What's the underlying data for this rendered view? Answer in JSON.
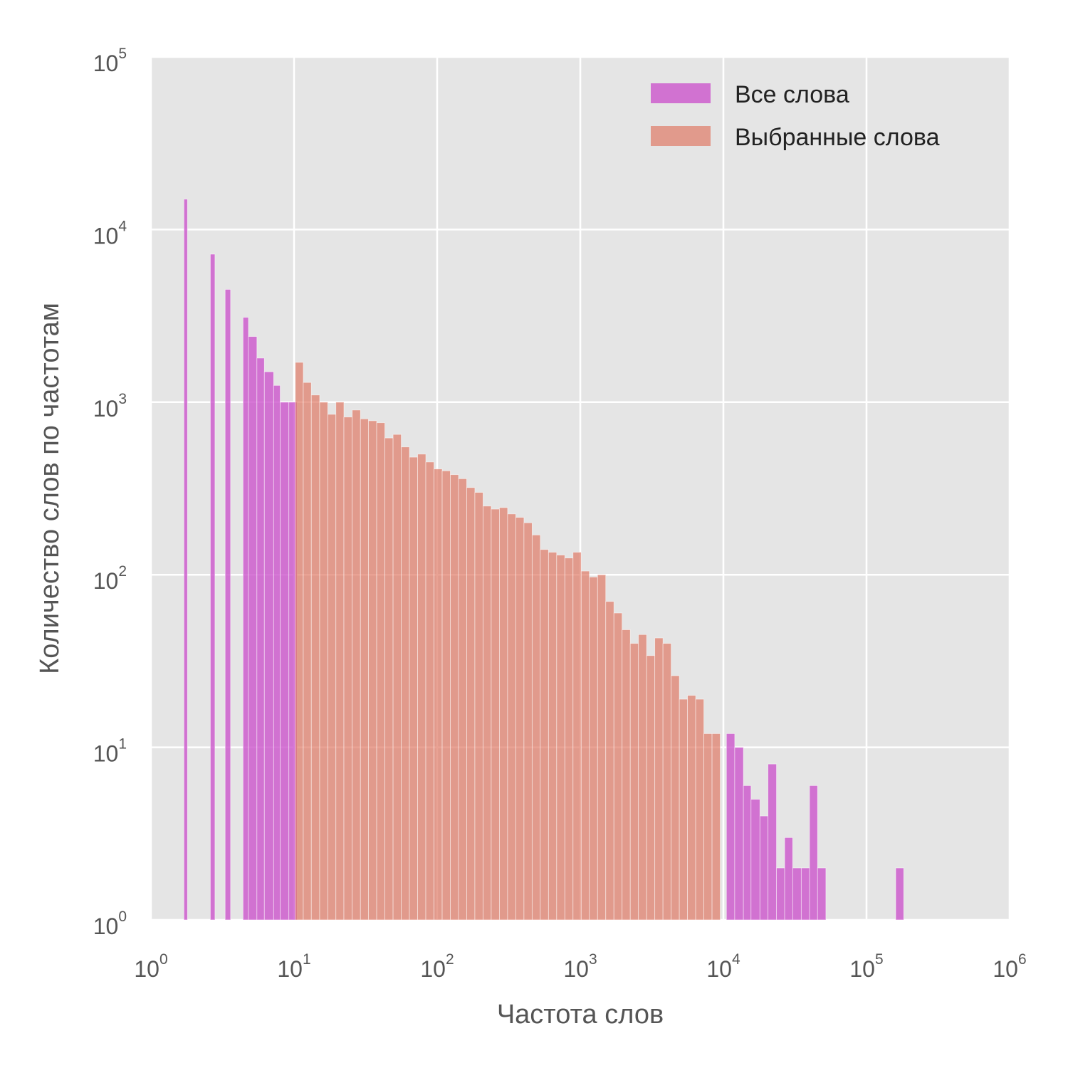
{
  "chart_data": {
    "type": "bar",
    "xscale": "log",
    "yscale": "log",
    "xlim": [
      1,
      1000000
    ],
    "ylim": [
      1,
      100000
    ],
    "xlabel": "Частота слов",
    "ylabel": "Количество слов по частотам",
    "grid": true,
    "legend_position": "top-right",
    "x_ticks": [
      {
        "base": "10",
        "exp": "0"
      },
      {
        "base": "10",
        "exp": "1"
      },
      {
        "base": "10",
        "exp": "2"
      },
      {
        "base": "10",
        "exp": "3"
      },
      {
        "base": "10",
        "exp": "4"
      },
      {
        "base": "10",
        "exp": "5"
      },
      {
        "base": "10",
        "exp": "6"
      }
    ],
    "y_ticks": [
      {
        "base": "10",
        "exp": "0"
      },
      {
        "base": "10",
        "exp": "1"
      },
      {
        "base": "10",
        "exp": "2"
      },
      {
        "base": "10",
        "exp": "3"
      },
      {
        "base": "10",
        "exp": "4"
      },
      {
        "base": "10",
        "exp": "5"
      }
    ],
    "series": [
      {
        "name": "Все слова",
        "color": "#cc55cc",
        "bins": [
          [
            1.7,
            1.8,
            15000
          ],
          [
            2.6,
            2.8,
            7200
          ],
          [
            3.3,
            3.6,
            4500
          ],
          [
            4.4,
            4.8,
            3100
          ],
          [
            4.8,
            5.5,
            2400
          ],
          [
            5.5,
            6.2,
            1800
          ],
          [
            6.2,
            7.2,
            1500
          ],
          [
            7.2,
            8.0,
            1250
          ],
          [
            8.0,
            9.2,
            1000
          ],
          [
            9.2,
            10.5,
            1000
          ],
          [
            10500,
            12000,
            12
          ],
          [
            12000,
            13800,
            10
          ],
          [
            13800,
            15600,
            6
          ],
          [
            15600,
            18000,
            5
          ],
          [
            18000,
            20500,
            4
          ],
          [
            20500,
            23500,
            8
          ],
          [
            23500,
            26800,
            2
          ],
          [
            26800,
            30500,
            3
          ],
          [
            30500,
            35000,
            2
          ],
          [
            35000,
            40000,
            2
          ],
          [
            40000,
            45500,
            6
          ],
          [
            45500,
            52000,
            2
          ],
          [
            160000,
            182000,
            2
          ]
        ]
      },
      {
        "name": "Выбранные слова",
        "color": "#e07a66",
        "bins": [
          [
            10.2,
            11.6,
            1700
          ],
          [
            11.6,
            13.2,
            1300
          ],
          [
            13.2,
            15.1,
            1100
          ],
          [
            15.1,
            17.2,
            1000
          ],
          [
            17.2,
            19.6,
            850
          ],
          [
            19.6,
            22.3,
            1000
          ],
          [
            22.3,
            25.5,
            820
          ],
          [
            25.5,
            29.1,
            900
          ],
          [
            29.1,
            33.1,
            800
          ],
          [
            33.1,
            37.8,
            780
          ],
          [
            37.8,
            43.1,
            760
          ],
          [
            43.1,
            49.2,
            620
          ],
          [
            49.2,
            56.1,
            650
          ],
          [
            56.1,
            64.0,
            550
          ],
          [
            64.0,
            73.0,
            480
          ],
          [
            73.0,
            83.3,
            500
          ],
          [
            83.3,
            95.0,
            450
          ],
          [
            95.0,
            108.4,
            410
          ],
          [
            108.4,
            123.6,
            400
          ],
          [
            123.6,
            141.0,
            380
          ],
          [
            141.0,
            160.8,
            360
          ],
          [
            160.8,
            183.4,
            320
          ],
          [
            183.4,
            209.2,
            300
          ],
          [
            209.2,
            238.6,
            250
          ],
          [
            238.6,
            272.2,
            240
          ],
          [
            272.2,
            310.5,
            245
          ],
          [
            310.5,
            354.2,
            225
          ],
          [
            354.2,
            404.0,
            215
          ],
          [
            404.0,
            460.8,
            200
          ],
          [
            460.8,
            525.6,
            170
          ],
          [
            525.6,
            599.5,
            140
          ],
          [
            599.5,
            683.8,
            135
          ],
          [
            683.8,
            780.0,
            130
          ],
          [
            780.0,
            889.7,
            125
          ],
          [
            889.7,
            1014.8,
            135
          ],
          [
            1014.8,
            1157.5,
            105
          ],
          [
            1157.5,
            1320.3,
            97
          ],
          [
            1320.3,
            1506.0,
            100
          ],
          [
            1506.0,
            1717.8,
            70
          ],
          [
            1717.8,
            1959.4,
            60
          ],
          [
            1959.4,
            2235.0,
            48
          ],
          [
            2235.0,
            2549.3,
            40
          ],
          [
            2549.3,
            2907.8,
            45
          ],
          [
            2907.8,
            3316.7,
            34
          ],
          [
            3316.7,
            3783.2,
            43
          ],
          [
            3783.2,
            4315.2,
            40
          ],
          [
            4315.2,
            4922.0,
            26
          ],
          [
            4922.0,
            5614.2,
            19
          ],
          [
            5614.2,
            6403.8,
            20
          ],
          [
            6403.8,
            7304.3,
            19
          ],
          [
            7304.3,
            8331.5,
            12
          ],
          [
            8331.5,
            9503.2,
            12
          ]
        ]
      }
    ]
  }
}
